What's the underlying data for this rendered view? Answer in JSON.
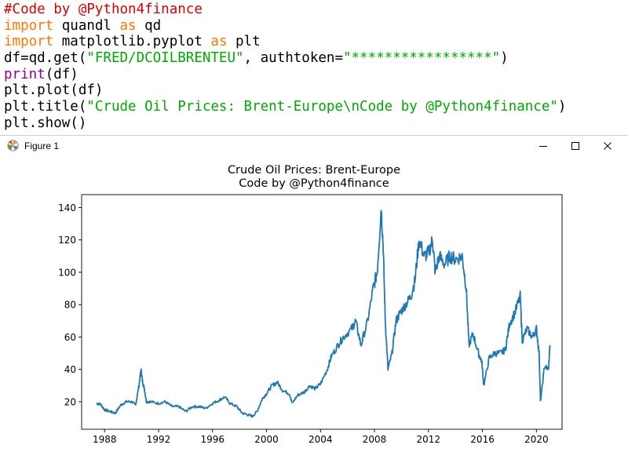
{
  "code": {
    "line1_comment": "#Code by @Python4finance",
    "line2_kw": "import",
    "line2_rest": " quandl ",
    "line2_as": "as",
    "line2_alias": " qd",
    "line3_kw": "import",
    "line3_rest": " matplotlib.pyplot ",
    "line3_as": "as",
    "line3_alias": " plt",
    "line4_pre": "df=qd.get(",
    "line4_str1": "\"FRED/DCOILBRENTEU\"",
    "line4_mid": ", authtoken=",
    "line4_str2": "\"*****************\"",
    "line4_post": ")",
    "line5_builtin": "print",
    "line5_rest": "(df)",
    "line6": "plt.plot(df)",
    "line7_pre": "plt.title(",
    "line7_str": "\"Crude Oil Prices: Brent-Europe\\nCode by @Python4finance\"",
    "line7_post": ")",
    "line8": "plt.show()"
  },
  "window": {
    "title": "Figure 1",
    "icon": "matplotlib-icon",
    "buttons": [
      "minimize-icon",
      "maximize-icon",
      "close-icon"
    ]
  },
  "chart_data": {
    "type": "line",
    "title": "Crude Oil Prices: Brent-Europe",
    "subtitle": "Code by @Python4finance",
    "xlabel": "",
    "ylabel": "",
    "xlim": [
      1986.3,
      2021.9
    ],
    "ylim": [
      3,
      148
    ],
    "xticks": [
      1988,
      1992,
      1996,
      2000,
      2004,
      2008,
      2012,
      2016,
      2020
    ],
    "yticks": [
      20,
      40,
      60,
      80,
      100,
      120,
      140
    ],
    "grid": false,
    "color": "#1f77b4",
    "series": [
      {
        "x": [
          1987.4,
          1987.7,
          1988.0,
          1988.4,
          1988.8,
          1989.2,
          1989.6,
          1990.0,
          1990.3,
          1990.55,
          1990.7,
          1990.8,
          1990.95,
          1991.1,
          1991.4,
          1992.0,
          1992.5,
          1993.0,
          1993.5,
          1994.0,
          1994.5,
          1995.0,
          1995.5,
          1996.0,
          1996.5,
          1996.9,
          1997.3,
          1997.8,
          1998.2,
          1998.6,
          1998.95,
          1999.3,
          1999.7,
          2000.0,
          2000.4,
          2000.8,
          2001.2,
          2001.7,
          2001.9,
          2002.3,
          2002.8,
          2003.2,
          2003.6,
          2004.0,
          2004.5,
          2004.8,
          2005.3,
          2005.7,
          2006.3,
          2006.6,
          2007.0,
          2007.5,
          2007.9,
          2008.2,
          2008.5,
          2008.65,
          2008.8,
          2009.0,
          2009.3,
          2009.6,
          2009.9,
          2010.3,
          2010.7,
          2011.0,
          2011.3,
          2011.7,
          2012.0,
          2012.3,
          2012.5,
          2012.8,
          2013.2,
          2013.6,
          2014.0,
          2014.5,
          2014.8,
          2015.0,
          2015.3,
          2015.7,
          2015.95,
          2016.1,
          2016.5,
          2016.9,
          2017.3,
          2017.7,
          2018.0,
          2018.4,
          2018.8,
          2018.95,
          2019.3,
          2019.7,
          2020.0,
          2020.2,
          2020.3,
          2020.6,
          2020.9,
          2021.0
        ],
        "y": [
          19,
          18.5,
          15,
          14,
          13,
          18,
          20,
          20,
          18,
          30,
          40,
          33,
          28,
          20,
          20,
          19,
          20,
          17,
          17,
          14,
          17,
          17,
          16,
          19,
          21,
          23,
          19,
          17,
          13,
          12,
          11,
          14,
          22,
          25,
          30,
          32,
          27,
          25,
          19,
          24,
          26,
          30,
          28,
          31,
          40,
          48,
          55,
          60,
          65,
          70,
          55,
          70,
          90,
          100,
          140,
          115,
          70,
          40,
          50,
          70,
          75,
          80,
          85,
          95,
          120,
          110,
          112,
          120,
          100,
          110,
          105,
          110,
          108,
          110,
          90,
          55,
          62,
          50,
          45,
          30,
          47,
          50,
          50,
          52,
          68,
          75,
          85,
          58,
          65,
          60,
          65,
          50,
          20,
          42,
          40,
          55
        ]
      }
    ]
  }
}
